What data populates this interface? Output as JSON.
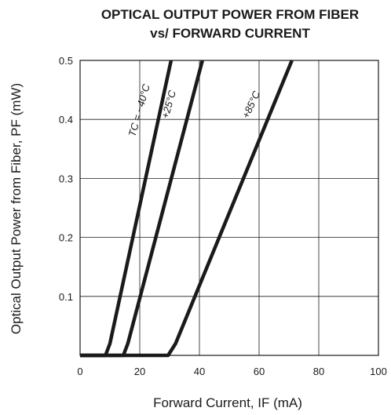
{
  "chart_data": {
    "type": "line",
    "title": [
      "OPTICAL OUTPUT POWER FROM FIBER",
      "vs/ FORWARD CURRENT"
    ],
    "xlabel": "Forward Current, IF (mA)",
    "ylabel": "Optical Output Power from Fiber, PF (mW)",
    "xlim": [
      0,
      100
    ],
    "ylim": [
      0,
      0.5
    ],
    "x_ticks": [
      "0",
      "20",
      "40",
      "60",
      "80",
      "100"
    ],
    "y_ticks": [
      "0.1",
      "0.2",
      "0.3",
      "0.4",
      "0.5"
    ],
    "grid": true,
    "series": [
      {
        "name": "TC = −40°C",
        "x": [
          0,
          8.5,
          10,
          30.5
        ],
        "y": [
          0,
          0,
          0.02,
          0.5
        ]
      },
      {
        "name": "+25°C",
        "x": [
          0,
          14.5,
          16,
          41
        ],
        "y": [
          0,
          0,
          0.02,
          0.5
        ]
      },
      {
        "name": "+85°C",
        "x": [
          0,
          29.5,
          32,
          71
        ],
        "y": [
          0,
          0,
          0.02,
          0.5
        ]
      }
    ]
  }
}
